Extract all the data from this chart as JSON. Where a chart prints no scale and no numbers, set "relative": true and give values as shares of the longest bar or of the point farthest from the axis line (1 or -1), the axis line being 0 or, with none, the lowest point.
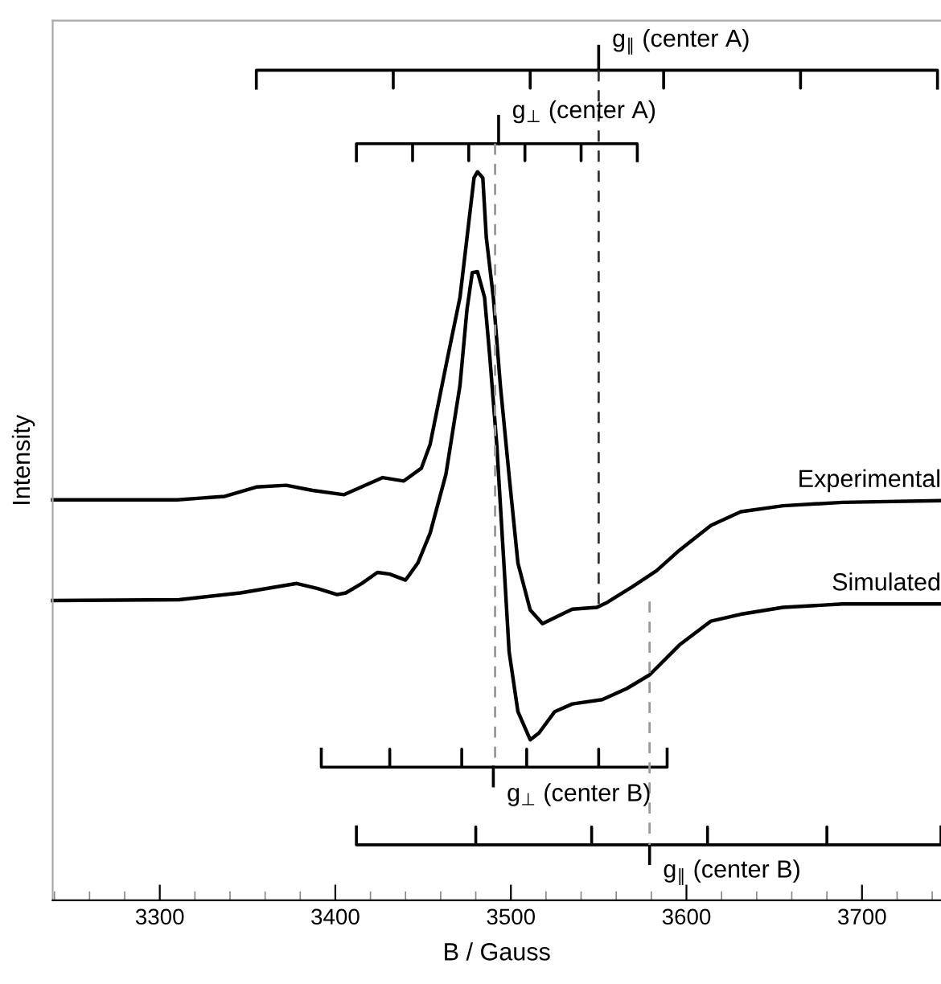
{
  "chart_data": {
    "type": "line",
    "relative": true,
    "xlabel": "B / Gauss",
    "ylabel": "Intensity",
    "xlim": [
      3239,
      3745
    ],
    "xticks": [
      {
        "value": 3240,
        "label": null
      },
      {
        "value": 3260,
        "label": null
      },
      {
        "value": 3280,
        "label": null
      },
      3300,
      {
        "value": 3320,
        "label": null
      },
      {
        "value": 3340,
        "label": null
      },
      {
        "value": 3360,
        "label": null
      },
      {
        "value": 3380,
        "label": null
      },
      3400,
      {
        "value": 3420,
        "label": null
      },
      {
        "value": 3440,
        "label": null
      },
      {
        "value": 3460,
        "label": null
      },
      {
        "value": 3480,
        "label": null
      },
      3500,
      {
        "value": 3520,
        "label": null
      },
      {
        "value": 3540,
        "label": null
      },
      {
        "value": 3560,
        "label": null
      },
      {
        "value": 3580,
        "label": null
      },
      3600,
      {
        "value": 3620,
        "label": null
      },
      {
        "value": 3640,
        "label": null
      },
      {
        "value": 3660,
        "label": null
      },
      {
        "value": 3680,
        "label": null
      },
      3700,
      {
        "value": 3720,
        "label": null
      },
      {
        "value": 3740,
        "label": null
      }
    ],
    "legend": false,
    "grid": false,
    "marker": "none",
    "line_style": "solid",
    "series": [
      {
        "name": "Experimental",
        "color": "#000000",
        "x": [
          3239,
          3310,
          3337,
          3355,
          3372,
          3387,
          3405,
          3427,
          3439,
          3449,
          3454,
          3464,
          3471,
          3475,
          3479,
          3481,
          3484,
          3486,
          3490,
          3494,
          3499,
          3504,
          3511,
          3518,
          3526,
          3535,
          3549,
          3555,
          3569,
          3583,
          3596,
          3614,
          3631,
          3655,
          3689,
          3745
        ],
        "values": [
          0.469,
          0.469,
          0.473,
          0.484,
          0.486,
          0.48,
          0.475,
          0.495,
          0.491,
          0.506,
          0.534,
          0.636,
          0.706,
          0.776,
          0.846,
          0.853,
          0.846,
          0.776,
          0.706,
          0.603,
          0.497,
          0.395,
          0.34,
          0.324,
          0.332,
          0.341,
          0.343,
          0.349,
          0.367,
          0.386,
          0.41,
          0.439,
          0.455,
          0.462,
          0.466,
          0.468
        ]
      },
      {
        "name": "Simulated",
        "color": "#000000",
        "x": [
          3239,
          3311,
          3346,
          3378,
          3390,
          3401,
          3406,
          3415,
          3424,
          3431,
          3440,
          3447,
          3454,
          3463,
          3471,
          3475,
          3478,
          3481,
          3485,
          3488,
          3492,
          3496,
          3499,
          3504,
          3511,
          3516,
          3525,
          3535,
          3552,
          3566,
          3579,
          3596,
          3614,
          3631,
          3655,
          3689,
          3745
        ],
        "values": [
          0.351,
          0.352,
          0.36,
          0.371,
          0.365,
          0.358,
          0.36,
          0.371,
          0.384,
          0.382,
          0.375,
          0.395,
          0.43,
          0.499,
          0.603,
          0.692,
          0.735,
          0.736,
          0.706,
          0.636,
          0.532,
          0.395,
          0.291,
          0.221,
          0.188,
          0.196,
          0.221,
          0.23,
          0.235,
          0.248,
          0.264,
          0.299,
          0.327,
          0.335,
          0.343,
          0.347,
          0.347
        ]
      },
      {
        "color": "#000000",
        "x": [
          3355,
          3355,
          3433,
          3433,
          3433,
          3511,
          3511,
          3511,
          3587,
          3587,
          3587,
          3665,
          3665,
          3665,
          3743,
          3743
        ],
        "values": [
          0.951,
          0.972,
          0.972,
          0.951,
          0.972,
          0.972,
          0.951,
          0.972,
          0.972,
          0.951,
          0.972,
          0.972,
          0.951,
          0.972,
          0.972,
          0.951
        ]
      },
      {
        "color": "#000000",
        "x": [
          3550,
          3550
        ],
        "values": [
          0.972,
          1.0
        ]
      },
      {
        "color": "#333333",
        "line_style": "dashed",
        "x": [
          3550,
          3550
        ],
        "values": [
          0.972,
          0.345
        ]
      },
      {
        "color": "#000000",
        "x": [
          3412,
          3412,
          3444,
          3444,
          3444,
          3476,
          3476,
          3476,
          3508,
          3508,
          3508,
          3540,
          3540,
          3540,
          3572,
          3572
        ],
        "values": [
          0.866,
          0.886,
          0.886,
          0.866,
          0.886,
          0.886,
          0.866,
          0.886,
          0.886,
          0.866,
          0.886,
          0.886,
          0.866,
          0.886,
          0.886,
          0.866
        ]
      },
      {
        "color": "#000000",
        "x": [
          3493,
          3493
        ],
        "values": [
          0.886,
          0.918
        ]
      },
      {
        "color": "#999999",
        "line_style": "dashed",
        "x": [
          3491,
          3491
        ],
        "values": [
          0.886,
          0.156
        ]
      },
      {
        "color": "#000000",
        "x": [
          3392,
          3392,
          3431,
          3431,
          3431,
          3472,
          3472,
          3472,
          3509,
          3509,
          3509,
          3550,
          3550,
          3550,
          3589,
          3589
        ],
        "values": [
          0.177,
          0.156,
          0.156,
          0.177,
          0.156,
          0.156,
          0.177,
          0.156,
          0.156,
          0.177,
          0.156,
          0.156,
          0.177,
          0.156,
          0.156,
          0.177
        ]
      },
      {
        "color": "#000000",
        "x": [
          3490,
          3490
        ],
        "values": [
          0.156,
          0.134
        ]
      },
      {
        "color": "#000000",
        "x": [
          3412,
          3412,
          3480,
          3480,
          3480,
          3546,
          3546,
          3546,
          3612,
          3612,
          3612,
          3680,
          3680,
          3680,
          3745,
          3745
        ],
        "values": [
          0.086,
          0.065,
          0.065,
          0.086,
          0.065,
          0.065,
          0.086,
          0.065,
          0.065,
          0.086,
          0.065,
          0.065,
          0.086,
          0.065,
          0.065,
          0.086
        ]
      },
      {
        "color": "#000000",
        "x": [
          3579,
          3579
        ],
        "values": [
          0.065,
          0.043
        ]
      },
      {
        "color": "#999999",
        "line_style": "dashed",
        "x": [
          3579,
          3579
        ],
        "values": [
          0.35,
          0.065
        ]
      }
    ],
    "annotations": [
      {
        "text": "g$_{∥}$ (center A)",
        "x": 3550,
        "y": 1.0
      },
      {
        "text": "g$_{⊥}$ (center A)",
        "x": 3493,
        "y": 0.918
      },
      {
        "text": "g$_{⊥}$ (center B)",
        "x": 3490,
        "y": 0.134
      },
      {
        "text": "g$_{∥}$ (center B)",
        "x": 3579,
        "y": 0.043
      }
    ]
  }
}
